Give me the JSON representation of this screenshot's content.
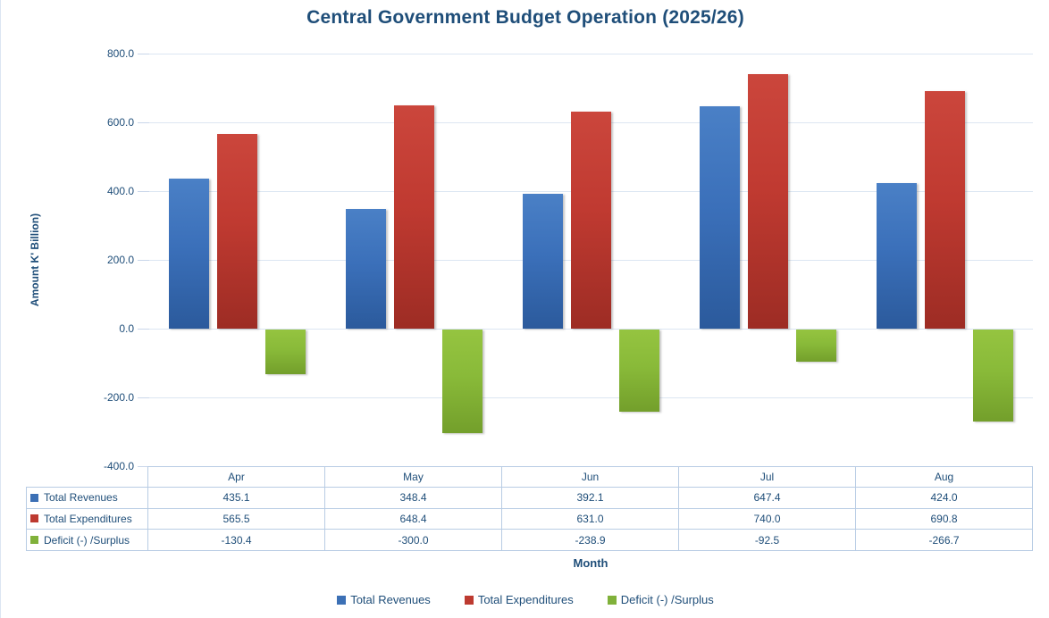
{
  "title": "Central Government Budget Operation (2025/26)",
  "y_axis": {
    "title": "Amount K' Billion)",
    "ticks": [
      800.0,
      600.0,
      400.0,
      200.0,
      0.0,
      -200.0,
      -400.0
    ]
  },
  "x_axis": {
    "title": "Month"
  },
  "colors": {
    "text": "#1f4e79",
    "gridline": "#dce6f2",
    "table_border": "#b8cce4",
    "series": [
      "#3c70b5",
      "#bd3a30",
      "#80b13a"
    ]
  },
  "chart_data": {
    "type": "bar",
    "title": "Central Government Budget Operation (2025/26)",
    "categories": [
      "Apr",
      "May",
      "Jun",
      "Jul",
      "Aug"
    ],
    "series": [
      {
        "name": "Total Revenues",
        "color": "#3c70b5",
        "values": [
          435.1,
          348.4,
          392.1,
          647.4,
          424.0
        ]
      },
      {
        "name": "Total Expenditures",
        "color": "#bd3a30",
        "values": [
          565.5,
          648.4,
          631.0,
          740.0,
          690.8
        ]
      },
      {
        "name": "Deficit (-) /Surplus",
        "color": "#80b13a",
        "values": [
          -130.4,
          -300.0,
          -238.9,
          -92.5,
          -266.7
        ]
      }
    ],
    "xlabel": "Month",
    "ylabel": "Amount K' Billion)",
    "ylim": [
      -400,
      800
    ],
    "ytick_step": 200,
    "grid": true,
    "legend_position": "bottom",
    "data_table": true
  }
}
